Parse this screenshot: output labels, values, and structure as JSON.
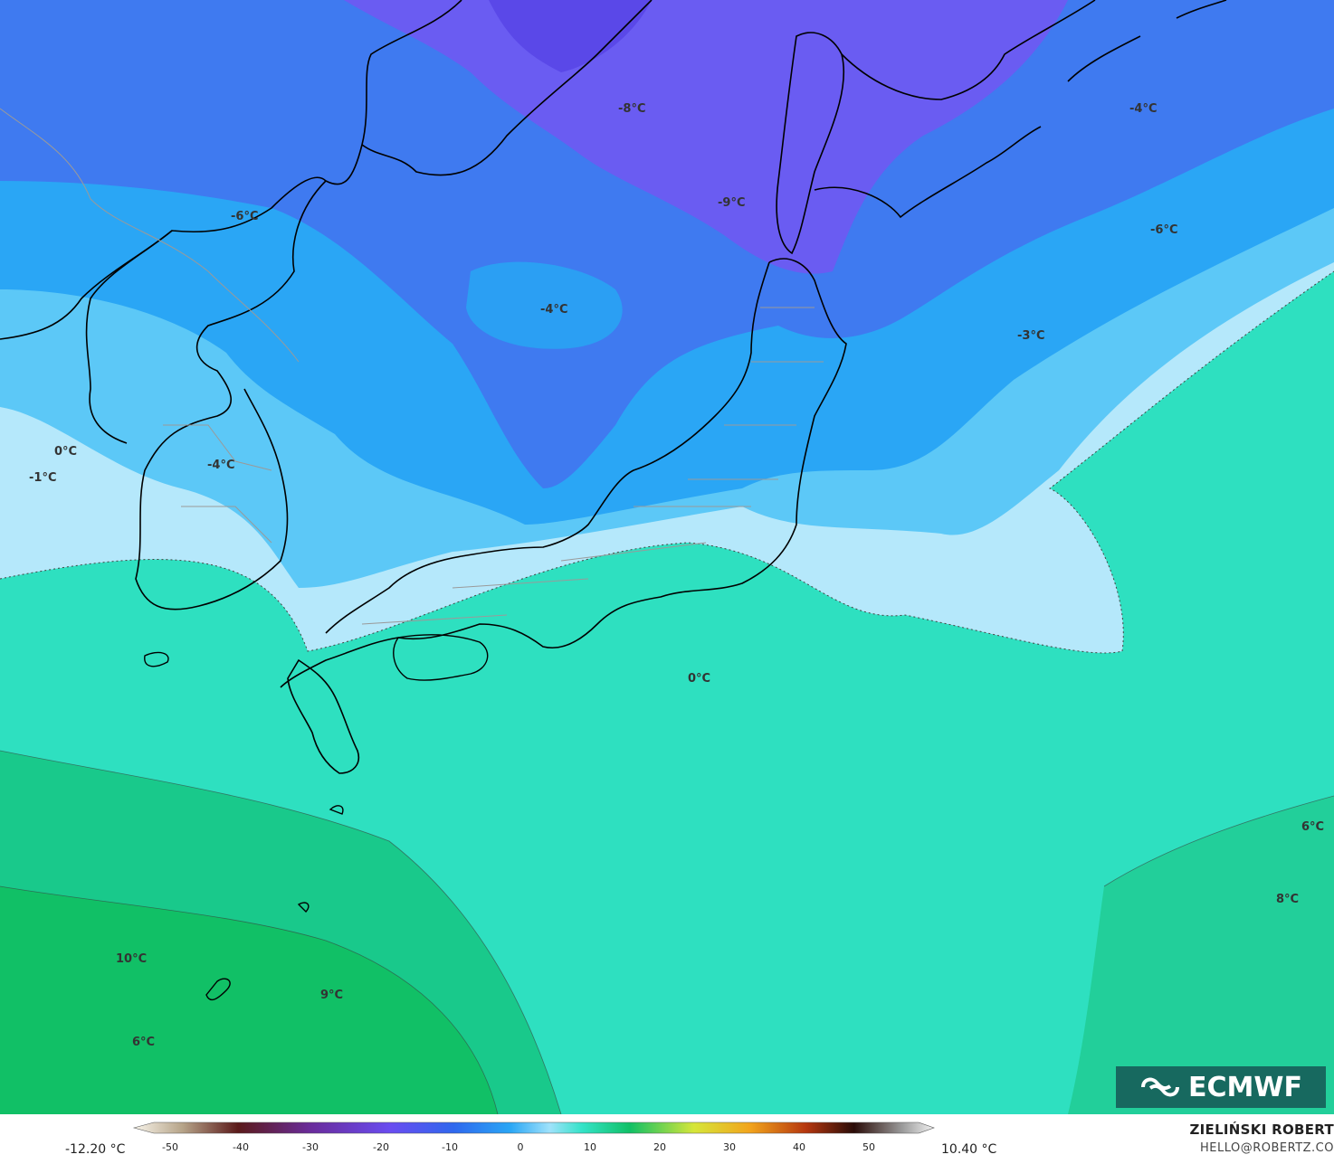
{
  "map": {
    "colors": {
      "very_cold": "#6a5cf2",
      "cold": "#3f7af0",
      "cool": "#2aa6f5",
      "mild_cold": "#5cc8f7",
      "near_zero": "#b5e8fb",
      "near_zero_warm": "#43e3d6",
      "warm": "#2edbb0",
      "warmer": "#19c98b",
      "warmest": "#11c066",
      "land_line": "#000000",
      "border_line": "#9a9a9a"
    },
    "labels": [
      {
        "id": "lbl-m8",
        "text": "-8°C"
      },
      {
        "id": "lbl-m4-ne",
        "text": "-4°C"
      },
      {
        "id": "lbl-m9",
        "text": "-9°C"
      },
      {
        "id": "lbl-m6-w",
        "text": "-6°C"
      },
      {
        "id": "lbl-m6-e",
        "text": "-6°C"
      },
      {
        "id": "lbl-m4-c",
        "text": "-4°C"
      },
      {
        "id": "lbl-m3",
        "text": "-3°C"
      },
      {
        "id": "lbl-0-w",
        "text": "0°C"
      },
      {
        "id": "lbl-m1",
        "text": "-1°C"
      },
      {
        "id": "lbl-m4-korea",
        "text": "-4°C"
      },
      {
        "id": "lbl-0-s",
        "text": "0°C"
      },
      {
        "id": "lbl-6-e",
        "text": "6°C"
      },
      {
        "id": "lbl-8",
        "text": "8°C"
      },
      {
        "id": "lbl-10",
        "text": "10°C"
      },
      {
        "id": "lbl-9",
        "text": "9°C"
      },
      {
        "id": "lbl-6-sw",
        "text": "6°C"
      }
    ]
  },
  "legend": {
    "min_label": "-12.20 °C",
    "max_label": "10.40 °C",
    "ticks": [
      "-50",
      "-40",
      "-30",
      "-20",
      "-10",
      "0",
      "10",
      "20",
      "30",
      "40",
      "50"
    ]
  },
  "logo": {
    "text": "ECMWF"
  },
  "credit": {
    "name": "ZIELIŃSKI ROBERT",
    "email": "HELLO@ROBERTZ.CO"
  }
}
